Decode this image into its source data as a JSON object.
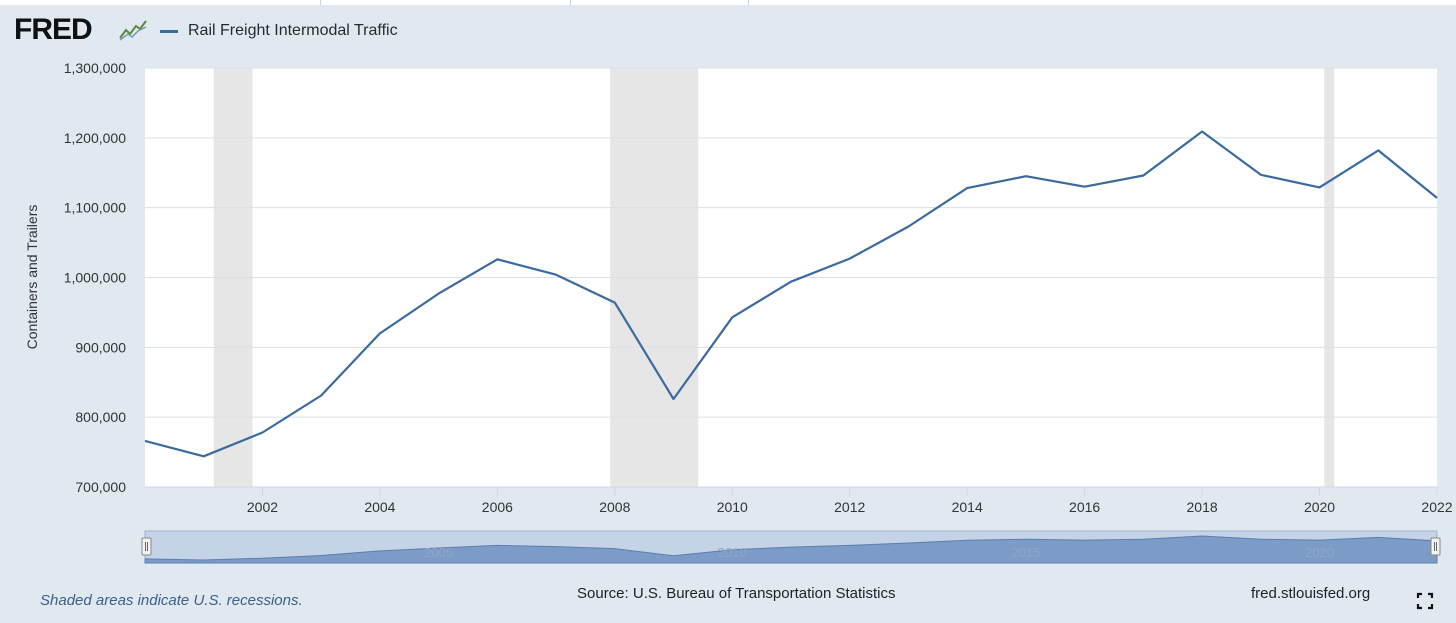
{
  "header": {
    "logo_text": "FRED",
    "logo_icon": "chart-icon",
    "legend_label": "Rail Freight Intermodal Traffic",
    "series_color": "#3b6aa0"
  },
  "footer": {
    "note": "Shaded areas indicate U.S. recessions.",
    "source": "Source: U.S. Bureau of Transportation Statistics",
    "site": "fred.stlouisfed.org",
    "fullscreen_icon": "fullscreen-icon"
  },
  "chart_data": {
    "type": "line",
    "title": "",
    "ylabel": "Containers and Trailers",
    "xlabel": "",
    "xlim": [
      2000,
      2022
    ],
    "ylim": [
      700000,
      1300000
    ],
    "yticks": [
      700000,
      800000,
      900000,
      1000000,
      1100000,
      1200000,
      1300000
    ],
    "ytick_labels": [
      "700,000",
      "800,000",
      "900,000",
      "1,000,000",
      "1,100,000",
      "1,200,000",
      "1,300,000"
    ],
    "xticks": [
      2002,
      2004,
      2006,
      2008,
      2010,
      2012,
      2014,
      2016,
      2018,
      2020,
      2022
    ],
    "xtick_labels": [
      "2002",
      "2004",
      "2006",
      "2008",
      "2010",
      "2012",
      "2014",
      "2016",
      "2018",
      "2020",
      "2022"
    ],
    "grid": true,
    "legend": "top-left",
    "recessions": [
      [
        2001.17,
        2001.83
      ],
      [
        2007.92,
        2009.42
      ],
      [
        2020.08,
        2020.25
      ]
    ],
    "series": [
      {
        "name": "Rail Freight Intermodal Traffic",
        "x": [
          2000,
          2001,
          2002,
          2003,
          2004,
          2005,
          2006,
          2007,
          2008,
          2009,
          2010,
          2011,
          2012,
          2013,
          2014,
          2015,
          2016,
          2017,
          2018,
          2019,
          2020,
          2021,
          2022
        ],
        "values": [
          766000,
          744000,
          778000,
          831000,
          920000,
          977000,
          1026000,
          1004000,
          964000,
          826000,
          943000,
          994000,
          1027000,
          1073000,
          1128000,
          1145000,
          1130000,
          1146000,
          1209000,
          1147000,
          1129000,
          1182000,
          1114000
        ]
      }
    ],
    "navigator_labels": [
      "2005",
      "2010",
      "2015",
      "2020"
    ]
  }
}
